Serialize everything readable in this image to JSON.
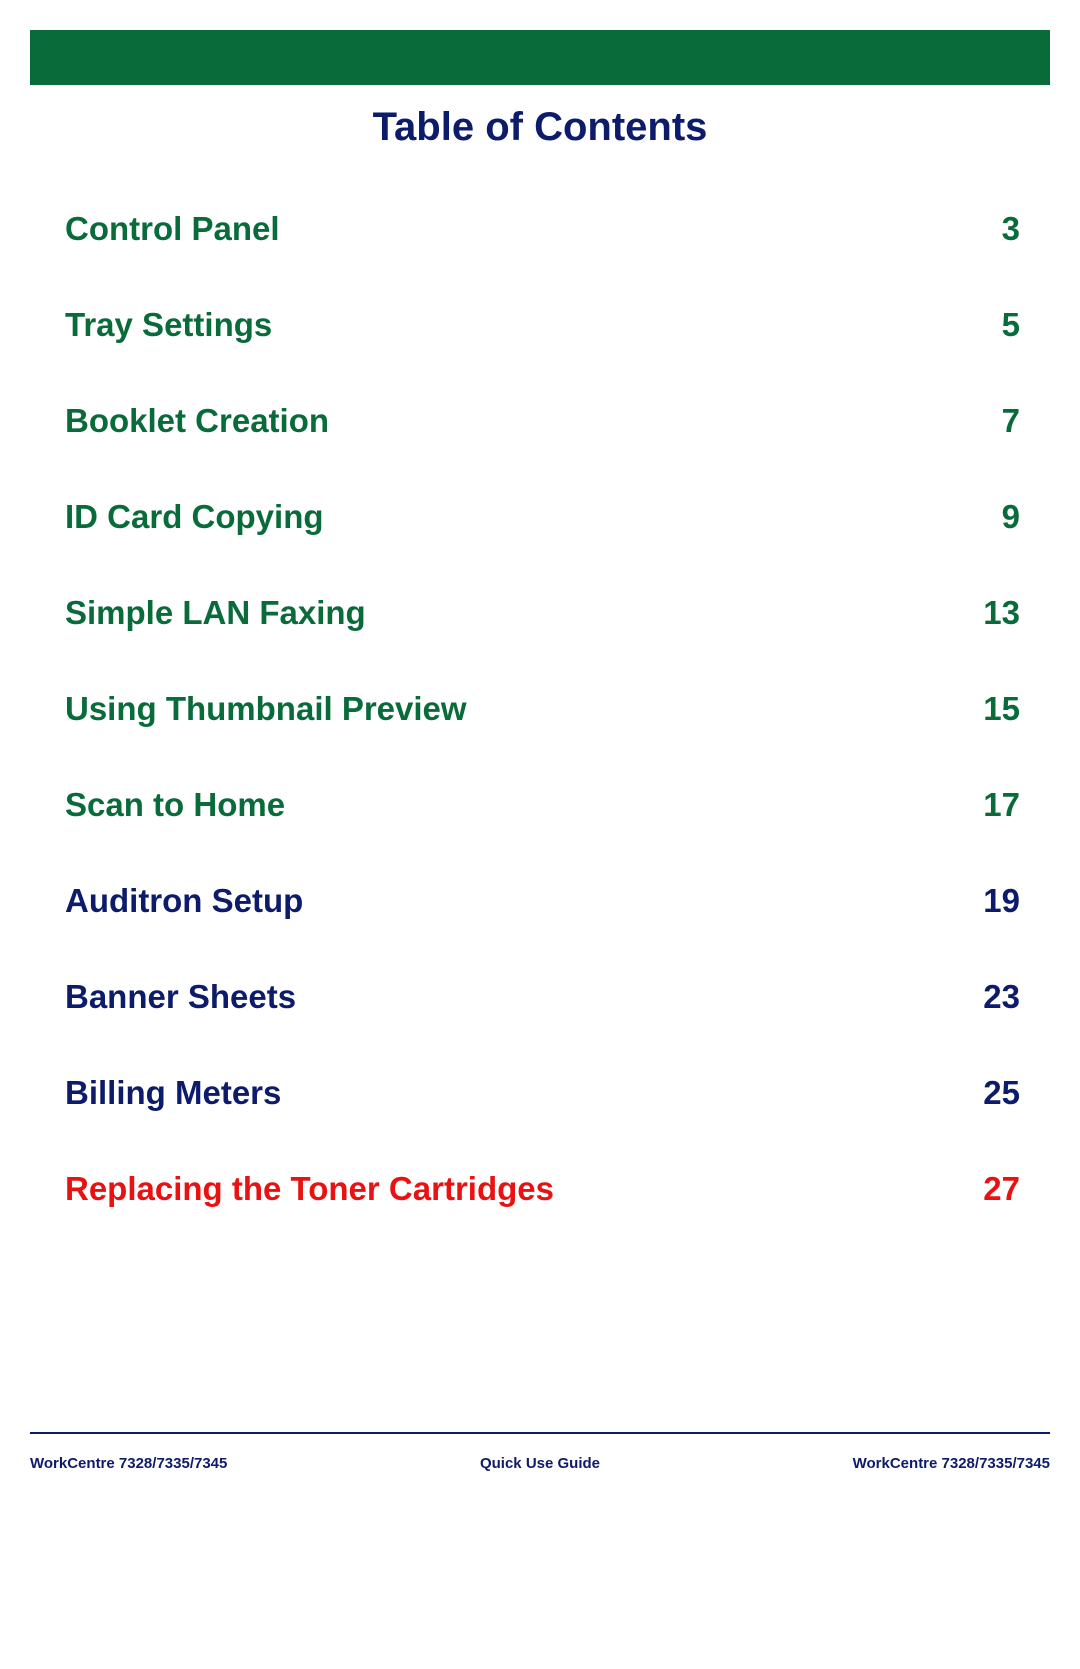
{
  "colors": {
    "header_bar": "#0a6b3a",
    "title": "#0d1b6b",
    "green": "#0a6b3a",
    "navy": "#0d1b6b",
    "red": "#e81212",
    "rule": "#0d1b6b",
    "footer_text": "#0d1b6b"
  },
  "title": "Table of Contents",
  "entries": [
    {
      "label": "Control Panel",
      "page": "3",
      "color_key": "green"
    },
    {
      "label": "Tray Settings",
      "page": "5",
      "color_key": "green"
    },
    {
      "label": "Booklet Creation",
      "page": "7",
      "color_key": "green"
    },
    {
      "label": "ID Card Copying",
      "page": "9",
      "color_key": "green"
    },
    {
      "label": "Simple LAN Faxing",
      "page": "13",
      "color_key": "green"
    },
    {
      "label": "Using Thumbnail Preview",
      "page": "15",
      "color_key": "green"
    },
    {
      "label": "Scan to Home",
      "page": "17",
      "color_key": "green"
    },
    {
      "label": "Auditron Setup",
      "page": "19",
      "color_key": "navy"
    },
    {
      "label": "Banner Sheets",
      "page": "23",
      "color_key": "navy"
    },
    {
      "label": "Billing Meters",
      "page": "25",
      "color_key": "navy"
    },
    {
      "label": "Replacing the Toner Cartridges",
      "page": "27",
      "color_key": "red"
    }
  ],
  "footer": {
    "left": "WorkCentre 7328/7335/7345",
    "center": "Quick Use Guide",
    "right": "WorkCentre 7328/7335/7345"
  }
}
